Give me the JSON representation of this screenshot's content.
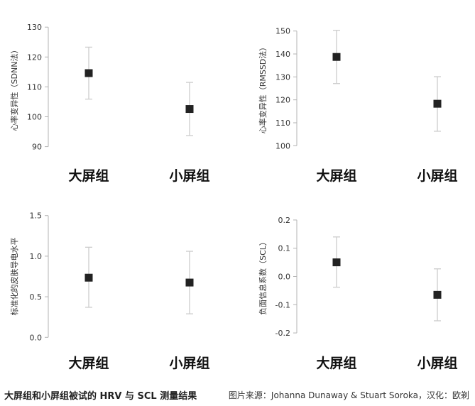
{
  "chart_data": [
    {
      "type": "scatter",
      "ylabel": "心率变异性（SDNN法）",
      "categories": [
        "大屏组",
        "小屏组"
      ],
      "values": [
        114.6,
        102.6
      ],
      "error_low": [
        105.9,
        93.7
      ],
      "error_high": [
        123.3,
        111.5
      ],
      "ylim": [
        88,
        131
      ],
      "yticks": [
        90,
        100,
        110,
        120,
        130
      ],
      "ytick_labels": [
        "90",
        "100",
        "110",
        "120",
        "130"
      ],
      "grid": false
    },
    {
      "type": "scatter",
      "ylabel": "心率变异性（RMSSD法）",
      "categories": [
        "大屏组",
        "小屏组"
      ],
      "values": [
        138.7,
        118.3
      ],
      "error_low": [
        127.1,
        106.3
      ],
      "error_high": [
        150.3,
        130.1
      ],
      "ylim": [
        97,
        153
      ],
      "yticks": [
        100,
        110,
        120,
        130,
        140,
        150
      ],
      "ytick_labels": [
        "100",
        "110",
        "120",
        "130",
        "140",
        "150"
      ],
      "grid": false
    },
    {
      "type": "scatter",
      "ylabel": "标准化的皮肤导电水平",
      "categories": [
        "大屏组",
        "小屏组"
      ],
      "values": [
        0.735,
        0.675
      ],
      "error_low": [
        0.37,
        0.29
      ],
      "error_high": [
        1.11,
        1.06
      ],
      "ylim": [
        -0.05,
        1.55
      ],
      "yticks": [
        0.0,
        0.5,
        1.0,
        1.5
      ],
      "ytick_labels": [
        "0.0",
        "0.5",
        "1.0",
        "1.5"
      ],
      "grid": false
    },
    {
      "type": "scatter",
      "ylabel": "负面信息系数（SCL）",
      "categories": [
        "大屏组",
        "小屏组"
      ],
      "values": [
        0.05,
        -0.065
      ],
      "error_low": [
        -0.038,
        -0.157
      ],
      "error_high": [
        0.14,
        0.027
      ],
      "ylim": [
        -0.23,
        0.23
      ],
      "yticks": [
        -0.2,
        -0.1,
        0.0,
        0.1,
        0.2
      ],
      "ytick_labels": [
        "-0.2",
        "-0.1",
        "0.0",
        "0.1",
        "0.2"
      ],
      "grid": false
    }
  ],
  "colors": {
    "marker": "#222222",
    "errorbar": "#cccccc",
    "axis": "#b3b3b3",
    "tick_text": "#333333"
  },
  "caption": {
    "left": "大屏组和小屏组被试的 HRV 与 SCL 测量结果",
    "right": "图片来源：Johanna Dunaway & Stuart Soroka，汉化：欧剃"
  }
}
